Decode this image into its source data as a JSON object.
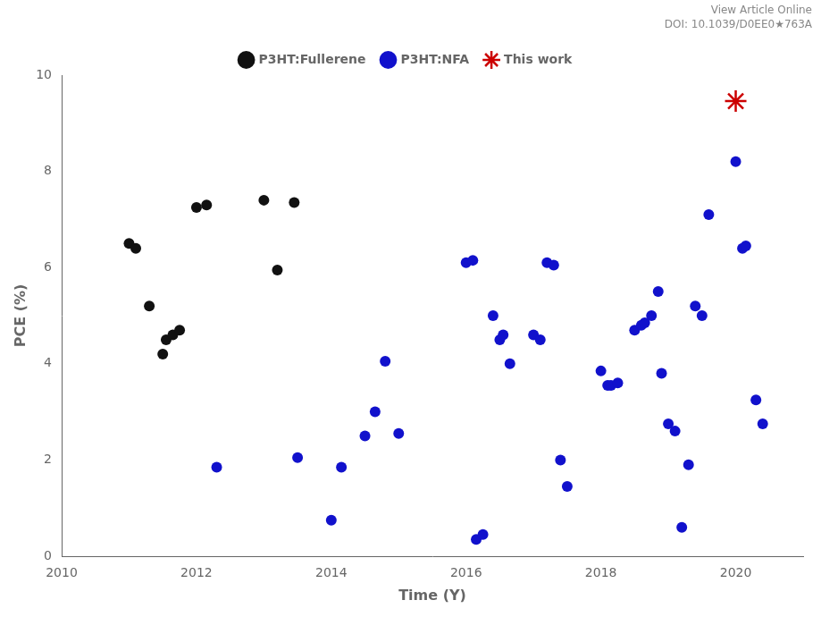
{
  "chart_data": {
    "type": "scatter",
    "xlabel": "Time (Y)",
    "ylabel": "PCE (%)",
    "xlim": [
      2010,
      2021
    ],
    "ylim": [
      0,
      10
    ],
    "xticks": [
      2010,
      2012,
      2014,
      2016,
      2018,
      2020
    ],
    "yticks": [
      0,
      2,
      4,
      6,
      8,
      10
    ],
    "grid": false,
    "legend": "top",
    "series": [
      {
        "name": "P3HT:Fullerene",
        "color": "#111111",
        "marker": "circle",
        "x": [
          2011.0,
          2011.1,
          2011.3,
          2011.5,
          2011.55,
          2011.65,
          2011.75,
          2012.0,
          2012.15,
          2013.0,
          2013.2,
          2013.45
        ],
        "values": [
          6.5,
          6.4,
          5.2,
          4.2,
          4.5,
          4.6,
          4.7,
          7.25,
          7.3,
          7.4,
          5.95,
          7.35
        ]
      },
      {
        "name": "P3HT:NFA",
        "color": "#1111cc",
        "marker": "circle",
        "x": [
          2012.3,
          2013.5,
          2014.0,
          2014.15,
          2014.5,
          2014.65,
          2014.8,
          2015.0,
          2016.0,
          2016.1,
          2016.15,
          2016.25,
          2016.4,
          2016.5,
          2016.55,
          2016.65,
          2017.0,
          2017.1,
          2017.2,
          2017.3,
          2017.4,
          2017.5,
          2018.0,
          2018.1,
          2018.15,
          2018.25,
          2018.5,
          2018.6,
          2018.65,
          2018.75,
          2018.85,
          2018.9,
          2019.0,
          2019.1,
          2019.2,
          2019.3,
          2019.4,
          2019.5,
          2019.6,
          2020.0,
          2020.1,
          2020.15,
          2020.3,
          2020.4
        ],
        "values": [
          1.85,
          2.05,
          0.75,
          1.85,
          2.5,
          3.0,
          4.05,
          2.55,
          6.1,
          6.15,
          0.35,
          0.45,
          5.0,
          4.5,
          4.6,
          4.0,
          4.6,
          4.5,
          6.1,
          6.05,
          2.0,
          1.45,
          3.85,
          3.55,
          3.55,
          3.6,
          4.7,
          4.8,
          4.85,
          5.0,
          5.5,
          3.8,
          2.75,
          2.6,
          0.6,
          1.9,
          5.2,
          5.0,
          7.1,
          8.2,
          6.4,
          6.45,
          3.25,
          2.75
        ]
      },
      {
        "name": "This work",
        "color": "#cc0000",
        "marker": "star",
        "x": [
          2020.0
        ],
        "values": [
          9.46
        ]
      }
    ],
    "annotations": [
      "View Article Online",
      "DOI: 10.1039/D0EE0★763A"
    ]
  }
}
